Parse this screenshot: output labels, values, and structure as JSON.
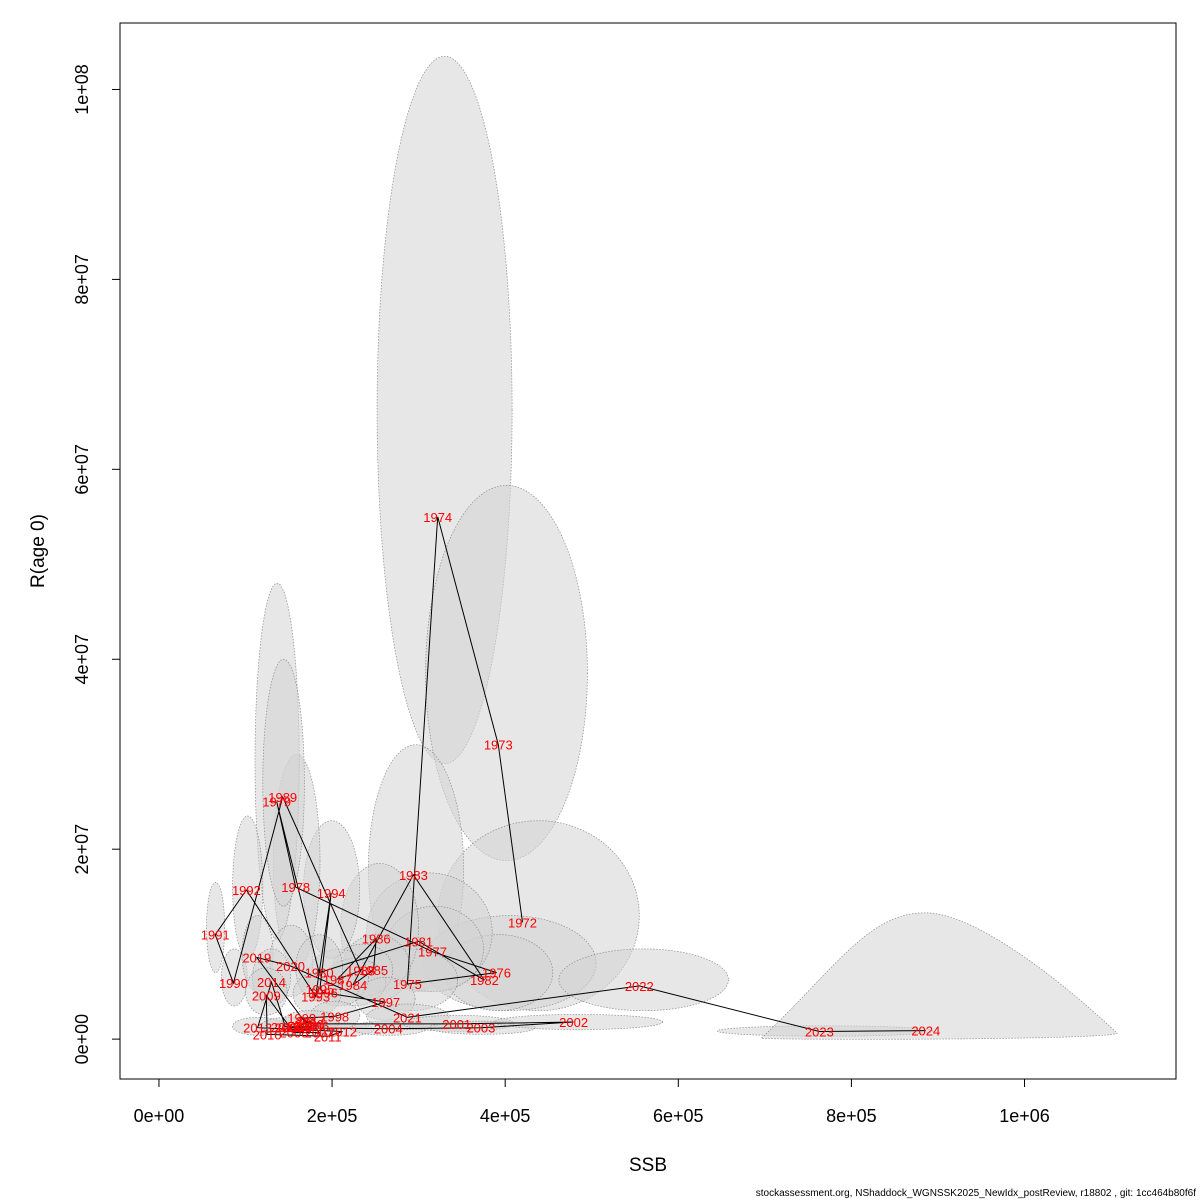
{
  "chart_data": {
    "type": "scatter",
    "title": "",
    "xlabel": "SSB",
    "ylabel": "R(age 0)",
    "xlim": [
      -45000,
      1175000
    ],
    "ylim": [
      -4200000,
      107000000
    ],
    "x_ticks": [
      0,
      200000,
      400000,
      600000,
      800000,
      1000000
    ],
    "x_tick_labels": [
      "0e+00",
      "2e+05",
      "4e+05",
      "6e+05",
      "8e+05",
      "1e+06"
    ],
    "y_ticks": [
      0,
      20000000,
      40000000,
      60000000,
      80000000,
      100000000
    ],
    "y_tick_labels": [
      "0e+00",
      "2e+07",
      "4e+07",
      "6e+07",
      "8e+07",
      "1e+08"
    ],
    "grid": false,
    "legend": "none",
    "point_color": "#ff0000",
    "line_color": "#000000",
    "ellipse_fill": "#d3d3d3",
    "points": [
      {
        "label": "1972",
        "ssb": 420000,
        "r": 12300000
      },
      {
        "label": "1973",
        "ssb": 392000,
        "r": 31000000
      },
      {
        "label": "1974",
        "ssb": 322000,
        "r": 55000000
      },
      {
        "label": "1975",
        "ssb": 287000,
        "r": 5800000
      },
      {
        "label": "1976",
        "ssb": 390000,
        "r": 7000000
      },
      {
        "label": "1977",
        "ssb": 316000,
        "r": 9200000
      },
      {
        "label": "1978",
        "ssb": 158000,
        "r": 16000000
      },
      {
        "label": "1979",
        "ssb": 136000,
        "r": 25000000
      },
      {
        "label": "1980",
        "ssb": 185000,
        "r": 7000000
      },
      {
        "label": "1981",
        "ssb": 300000,
        "r": 10300000
      },
      {
        "label": "1982",
        "ssb": 376000,
        "r": 6200000
      },
      {
        "label": "1983",
        "ssb": 294000,
        "r": 17300000
      },
      {
        "label": "1984",
        "ssb": 224000,
        "r": 5700000
      },
      {
        "label": "1985",
        "ssb": 248000,
        "r": 7300000
      },
      {
        "label": "1986",
        "ssb": 251000,
        "r": 10600000
      },
      {
        "label": "1987",
        "ssb": 206000,
        "r": 6300000
      },
      {
        "label": "1988",
        "ssb": 233000,
        "r": 7200000
      },
      {
        "label": "1989",
        "ssb": 143000,
        "r": 25500000
      },
      {
        "label": "1990",
        "ssb": 86000,
        "r": 5900000
      },
      {
        "label": "1991",
        "ssb": 65000,
        "r": 11000000
      },
      {
        "label": "1992",
        "ssb": 101000,
        "r": 15700000
      },
      {
        "label": "1993",
        "ssb": 181000,
        "r": 4500000
      },
      {
        "label": "1994",
        "ssb": 199000,
        "r": 15400000
      },
      {
        "label": "1995",
        "ssb": 186000,
        "r": 5300000
      },
      {
        "label": "1996",
        "ssb": 190000,
        "r": 4900000
      },
      {
        "label": "1997",
        "ssb": 262000,
        "r": 3900000
      },
      {
        "label": "1998",
        "ssb": 203000,
        "r": 2400000
      },
      {
        "label": "1999",
        "ssb": 165000,
        "r": 2200000
      },
      {
        "label": "2000",
        "ssb": 174000,
        "r": 1600000
      },
      {
        "label": "2001",
        "ssb": 344000,
        "r": 1600000
      },
      {
        "label": "2002",
        "ssb": 479000,
        "r": 1800000
      },
      {
        "label": "2003",
        "ssb": 372000,
        "r": 1200000
      },
      {
        "label": "2004",
        "ssb": 265000,
        "r": 1100000
      },
      {
        "label": "2005",
        "ssb": 150000,
        "r": 1200000
      },
      {
        "label": "2006",
        "ssb": 180000,
        "r": 1400000
      },
      {
        "label": "2007",
        "ssb": 185000,
        "r": 700000
      },
      {
        "label": "2008",
        "ssb": 156000,
        "r": 700000
      },
      {
        "label": "2009",
        "ssb": 124000,
        "r": 4600000
      },
      {
        "label": "2010",
        "ssb": 125000,
        "r": 500000
      },
      {
        "label": "2011",
        "ssb": 195000,
        "r": 300000
      },
      {
        "label": "2012",
        "ssb": 212000,
        "r": 800000
      },
      {
        "label": "2013",
        "ssb": 114000,
        "r": 1200000
      },
      {
        "label": "2014",
        "ssb": 130000,
        "r": 6000000
      },
      {
        "label": "2015",
        "ssb": 146000,
        "r": 1300000
      },
      {
        "label": "2016",
        "ssb": 160000,
        "r": 1300000
      },
      {
        "label": "2017",
        "ssb": 175000,
        "r": 1900000
      },
      {
        "label": "2018",
        "ssb": 172000,
        "r": 1400000
      },
      {
        "label": "2019",
        "ssb": 113000,
        "r": 8600000
      },
      {
        "label": "2020",
        "ssb": 152000,
        "r": 7700000
      },
      {
        "label": "2021",
        "ssb": 287000,
        "r": 2300000
      },
      {
        "label": "2022",
        "ssb": 555000,
        "r": 5600000
      },
      {
        "label": "2023",
        "ssb": 763000,
        "r": 800000
      },
      {
        "label": "2024",
        "ssb": 886000,
        "r": 900000
      }
    ],
    "uncertainty_ellipses": [
      {
        "label": "1974",
        "ssb_min": 252000,
        "ssb_max": 408000,
        "r_min": 29000000,
        "r_max": 103500000
      },
      {
        "label": "1973",
        "ssb_min": 308000,
        "ssb_max": 495000,
        "r_min": 18800000,
        "r_max": 58300000
      },
      {
        "label": "1972",
        "ssb_min": 322000,
        "ssb_max": 555000,
        "r_min": 3000000,
        "r_max": 23000000
      },
      {
        "label": "1983",
        "ssb_min": 242000,
        "ssb_max": 352000,
        "r_min": 5000000,
        "r_max": 31000000
      },
      {
        "label": "1976",
        "ssb_min": 305000,
        "ssb_max": 505000,
        "r_min": 3000000,
        "r_max": 13000000
      },
      {
        "label": "1982",
        "ssb_min": 330000,
        "ssb_max": 455000,
        "r_min": 3000000,
        "r_max": 11000000
      },
      {
        "label": "1981",
        "ssb_min": 240000,
        "ssb_max": 385000,
        "r_min": 5000000,
        "r_max": 17500000
      },
      {
        "label": "1977",
        "ssb_min": 262000,
        "ssb_max": 375000,
        "r_min": 5000000,
        "r_max": 14000000
      },
      {
        "label": "1975",
        "ssb_min": 236000,
        "ssb_max": 345000,
        "r_min": 3000000,
        "r_max": 9500000
      },
      {
        "label": "1986",
        "ssb_min": 210000,
        "ssb_max": 300000,
        "r_min": 5000000,
        "r_max": 18500000
      },
      {
        "label": "1985",
        "ssb_min": 212000,
        "ssb_max": 290000,
        "r_min": 4000000,
        "r_max": 11000000
      },
      {
        "label": "1988",
        "ssb_min": 200000,
        "ssb_max": 270000,
        "r_min": 4500000,
        "r_max": 10000000
      },
      {
        "label": "1984",
        "ssb_min": 190000,
        "ssb_max": 262000,
        "r_min": 3500000,
        "r_max": 8500000
      },
      {
        "label": "1987",
        "ssb_min": 172000,
        "ssb_max": 242000,
        "r_min": 3500000,
        "r_max": 9500000
      },
      {
        "label": "1994",
        "ssb_min": 167000,
        "ssb_max": 232000,
        "r_min": 8500000,
        "r_max": 23000000
      },
      {
        "label": "1978",
        "ssb_min": 132000,
        "ssb_max": 186000,
        "r_min": 7500000,
        "r_max": 30000000
      },
      {
        "label": "1979",
        "ssb_min": 111000,
        "ssb_max": 162000,
        "r_min": 10500000,
        "r_max": 48000000
      },
      {
        "label": "1989",
        "ssb_min": 120000,
        "ssb_max": 168000,
        "r_min": 14000000,
        "r_max": 40000000
      },
      {
        "label": "1992",
        "ssb_min": 85000,
        "ssb_max": 120000,
        "r_min": 8500000,
        "r_max": 23500000
      },
      {
        "label": "1991",
        "ssb_min": 55000,
        "ssb_max": 76000,
        "r_min": 7000000,
        "r_max": 16500000
      },
      {
        "label": "1990",
        "ssb_min": 72000,
        "ssb_max": 102000,
        "r_min": 3500000,
        "r_max": 9500000
      },
      {
        "label": "2019",
        "ssb_min": 96000,
        "ssb_max": 132000,
        "r_min": 5000000,
        "r_max": 13000000
      },
      {
        "label": "2020",
        "ssb_min": 128000,
        "ssb_max": 178000,
        "r_min": 4500000,
        "r_max": 12000000
      },
      {
        "label": "2014",
        "ssb_min": 108000,
        "ssb_max": 152000,
        "r_min": 3500000,
        "r_max": 9500000
      },
      {
        "label": "2009",
        "ssb_min": 100000,
        "ssb_max": 148000,
        "r_min": 2500000,
        "r_max": 7500000
      },
      {
        "label": "1980",
        "ssb_min": 158000,
        "ssb_max": 212000,
        "r_min": 4000000,
        "r_max": 11000000
      },
      {
        "label": "1993",
        "ssb_min": 155000,
        "ssb_max": 210000,
        "r_min": 2500000,
        "r_max": 7000000
      },
      {
        "label": "1997",
        "ssb_min": 228000,
        "ssb_max": 296000,
        "r_min": 2000000,
        "r_max": 6500000
      },
      {
        "label": "1998",
        "ssb_min": 175000,
        "ssb_max": 232000,
        "r_min": 1000000,
        "r_max": 4000000
      },
      {
        "label": "2013",
        "ssb_min": 85000,
        "ssb_max": 145000,
        "r_min": 400000,
        "r_max": 2300000
      },
      {
        "label": "2005",
        "ssb_min": 118000,
        "ssb_max": 182000,
        "r_min": 500000,
        "r_max": 2300000
      },
      {
        "label": "2000",
        "ssb_min": 142000,
        "ssb_max": 208000,
        "r_min": 600000,
        "r_max": 3000000
      },
      {
        "label": "2012",
        "ssb_min": 180000,
        "ssb_max": 248000,
        "r_min": 300000,
        "r_max": 1700000
      },
      {
        "label": "2004",
        "ssb_min": 222000,
        "ssb_max": 310000,
        "r_min": 400000,
        "r_max": 1900000
      },
      {
        "label": "2021",
        "ssb_min": 240000,
        "ssb_max": 335000,
        "r_min": 1000000,
        "r_max": 3700000
      },
      {
        "label": "2001",
        "ssb_min": 282000,
        "ssb_max": 410000,
        "r_min": 800000,
        "r_max": 2500000
      },
      {
        "label": "2003",
        "ssb_min": 312000,
        "ssb_max": 435000,
        "r_min": 500000,
        "r_max": 1900000
      },
      {
        "label": "2002",
        "ssb_min": 388000,
        "ssb_max": 582000,
        "r_min": 1000000,
        "r_max": 2600000
      },
      {
        "label": "2022",
        "ssb_min": 462000,
        "ssb_max": 658000,
        "r_min": 3000000,
        "r_max": 9500000
      },
      {
        "label": "2023",
        "ssb_min": 645000,
        "ssb_max": 895000,
        "r_min": 300000,
        "r_max": 1400000
      }
    ],
    "uncertainty_dome": {
      "label": "2024",
      "ssb_min": 696000,
      "ssb_peak": 885000,
      "ssb_max": 1107000,
      "r_base": 100000,
      "r_peak": 13300000
    },
    "footnote": "stockassessment.org, NShaddock_WGNSSK2025_NewIdx_postReview, r18802 , git: 1cc464b80f6f"
  }
}
